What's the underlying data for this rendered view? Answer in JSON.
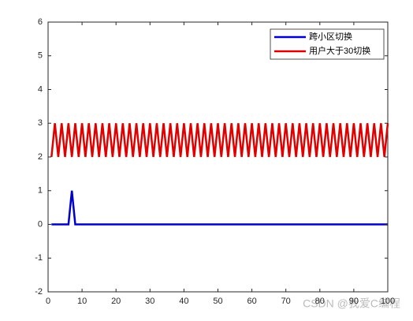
{
  "chart_data": {
    "type": "line",
    "x": [
      1,
      2,
      3,
      4,
      5,
      6,
      7,
      8,
      9,
      10,
      11,
      12,
      13,
      14,
      15,
      16,
      17,
      18,
      19,
      20,
      21,
      22,
      23,
      24,
      25,
      26,
      27,
      28,
      29,
      30,
      31,
      32,
      33,
      34,
      35,
      36,
      37,
      38,
      39,
      40,
      41,
      42,
      43,
      44,
      45,
      46,
      47,
      48,
      49,
      50,
      51,
      52,
      53,
      54,
      55,
      56,
      57,
      58,
      59,
      60,
      61,
      62,
      63,
      64,
      65,
      66,
      67,
      68,
      69,
      70,
      71,
      72,
      73,
      74,
      75,
      76,
      77,
      78,
      79,
      80,
      81,
      82,
      83,
      84,
      85,
      86,
      87,
      88,
      89,
      90,
      91,
      92,
      93,
      94,
      95,
      96,
      97,
      98,
      99,
      100
    ],
    "series": [
      {
        "name": "跨小区切换",
        "color": "#0000cc",
        "values": [
          0,
          0,
          0,
          0,
          0,
          0,
          1,
          0,
          0,
          0,
          0,
          0,
          0,
          0,
          0,
          0,
          0,
          0,
          0,
          0,
          0,
          0,
          0,
          0,
          0,
          0,
          0,
          0,
          0,
          0,
          0,
          0,
          0,
          0,
          0,
          0,
          0,
          0,
          0,
          0,
          0,
          0,
          0,
          0,
          0,
          0,
          0,
          0,
          0,
          0,
          0,
          0,
          0,
          0,
          0,
          0,
          0,
          0,
          0,
          0,
          0,
          0,
          0,
          0,
          0,
          0,
          0,
          0,
          0,
          0,
          0,
          0,
          0,
          0,
          0,
          0,
          0,
          0,
          0,
          0,
          0,
          0,
          0,
          0,
          0,
          0,
          0,
          0,
          0,
          0,
          0,
          0,
          0,
          0,
          0,
          0,
          0,
          0,
          0,
          0
        ]
      },
      {
        "name": "用户大于30切换",
        "color": "#e00000",
        "values": [
          2,
          3,
          2,
          3,
          2,
          3,
          2,
          3,
          2,
          3,
          2,
          3,
          2,
          3,
          2,
          3,
          2,
          3,
          2,
          3,
          2,
          3,
          2,
          3,
          2,
          3,
          2,
          3,
          2,
          3,
          2,
          3,
          2,
          3,
          2,
          3,
          2,
          3,
          2,
          3,
          2,
          3,
          2,
          3,
          2,
          3,
          2,
          3,
          2,
          3,
          2,
          3,
          2,
          3,
          2,
          3,
          2,
          3,
          2,
          3,
          2,
          3,
          2,
          3,
          2,
          3,
          2,
          3,
          2,
          3,
          2,
          3,
          2,
          3,
          2,
          3,
          2,
          3,
          2,
          3,
          2,
          3,
          2,
          3,
          2,
          3,
          2,
          3,
          2,
          3,
          2,
          3,
          2,
          3,
          2,
          3,
          2,
          3,
          2,
          3
        ]
      }
    ],
    "xlim": [
      0,
      100
    ],
    "xticks": [
      0,
      10,
      20,
      30,
      40,
      50,
      60,
      70,
      80,
      90,
      100
    ],
    "ylim": [
      -2,
      6
    ],
    "yticks": [
      -2,
      -1,
      0,
      1,
      2,
      3,
      4,
      5,
      6
    ],
    "legend": "upper right",
    "watermark": "CSDN @我爱C编程"
  }
}
